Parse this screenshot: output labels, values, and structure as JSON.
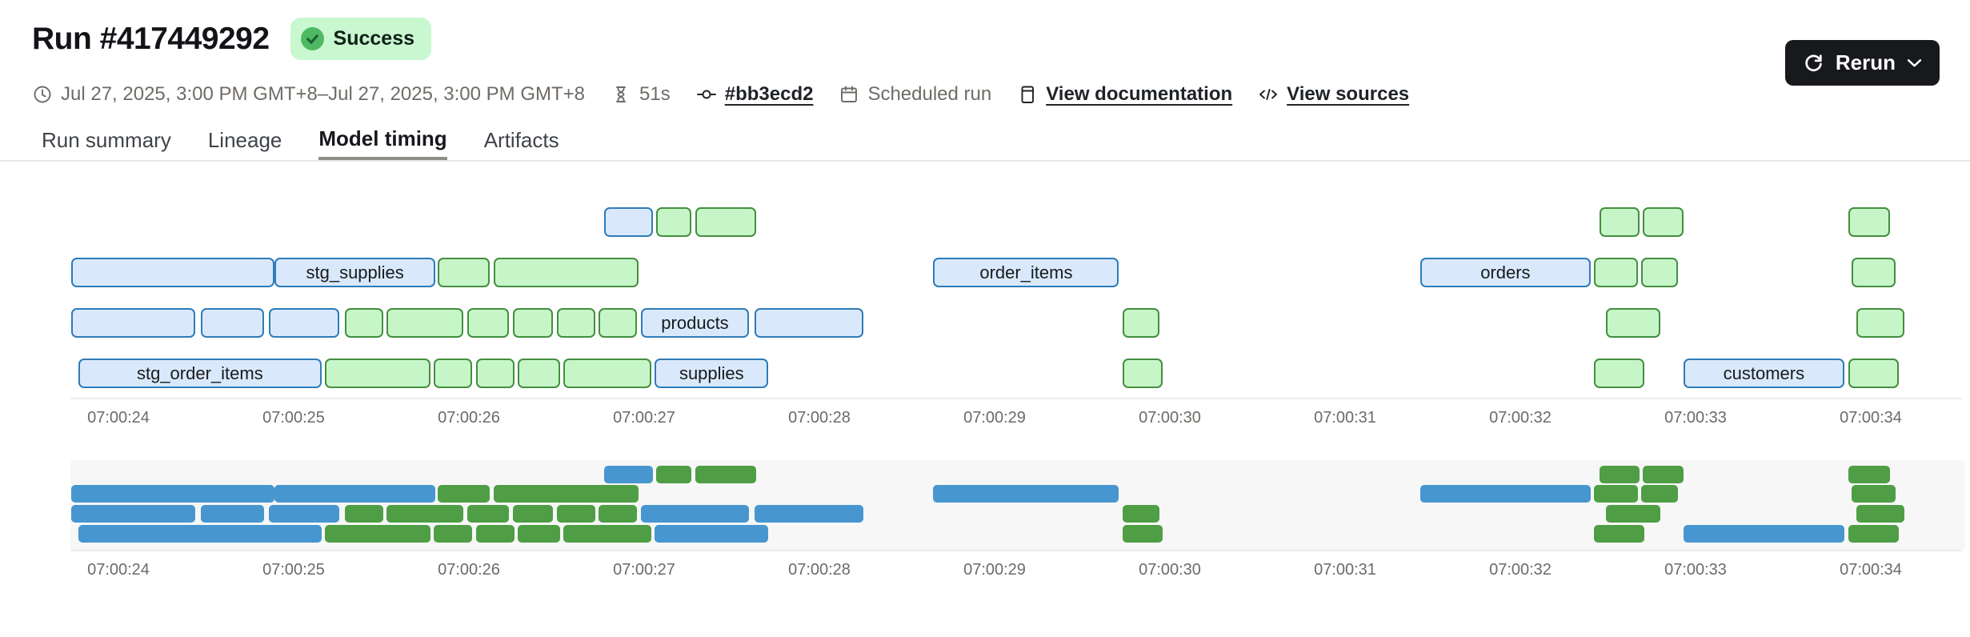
{
  "header": {
    "title": "Run #417449292",
    "status_badge": "Success",
    "rerun_label": "Rerun",
    "meta": {
      "date_range": "Jul 27, 2025, 3:00 PM GMT+8–Jul 27, 2025, 3:00 PM GMT+8",
      "duration": "51s",
      "commit": "#bb3ecd2",
      "trigger": "Scheduled run",
      "docs_link": "View documentation",
      "sources_link": "View sources"
    }
  },
  "tabs": {
    "items": [
      {
        "label": "Run summary",
        "active": false
      },
      {
        "label": "Lineage",
        "active": false
      },
      {
        "label": "Model timing",
        "active": true
      },
      {
        "label": "Artifacts",
        "active": false
      }
    ]
  },
  "colors": {
    "success_badge_bg": "#c9f7d0",
    "success_icon_circle": "#4db963",
    "success_icon_check": "#1f5c31",
    "rerun_button_bg": "#17191c",
    "detail_blue_fill": "#d9e9fb",
    "detail_blue_border": "#2e7cb9",
    "detail_green_fill": "#c6f6c8",
    "detail_green_border": "#448e3f",
    "mini_blue": "#4796cf",
    "mini_green": "#4f9e45",
    "mini_backdrop": "#f6f7f6"
  },
  "chart_data": {
    "type": "gantt",
    "title": "Model timing",
    "time_unit": "seconds relative to 07:00:24",
    "x_axis": {
      "tick_labels": [
        "07:00:24",
        "07:00:25",
        "07:00:26",
        "07:00:27",
        "07:00:28",
        "07:00:29",
        "07:00:30",
        "07:00:31",
        "07:00:32",
        "07:00:33",
        "07:00:34"
      ],
      "tick_seconds": [
        0,
        1,
        2,
        3,
        4,
        5,
        6,
        7,
        8,
        9,
        10
      ],
      "range_seconds": [
        -0.4,
        10.55
      ]
    },
    "minimap_mirrors_rows": true,
    "rows": [
      [
        {
          "start": 2.77,
          "end": 3.05,
          "color": "blue"
        },
        {
          "start": 3.07,
          "end": 3.27,
          "color": "green"
        },
        {
          "start": 3.29,
          "end": 3.64,
          "color": "green"
        },
        {
          "start": 8.45,
          "end": 8.68,
          "color": "green"
        },
        {
          "start": 8.7,
          "end": 8.93,
          "color": "green"
        },
        {
          "start": 9.87,
          "end": 10.11,
          "color": "green"
        }
      ],
      [
        {
          "start": -0.27,
          "end": 0.89,
          "color": "blue"
        },
        {
          "start": 0.89,
          "end": 1.81,
          "color": "blue",
          "label": "stg_supplies"
        },
        {
          "start": 1.82,
          "end": 2.12,
          "color": "green"
        },
        {
          "start": 2.14,
          "end": 2.97,
          "color": "green"
        },
        {
          "start": 4.65,
          "end": 5.71,
          "color": "blue",
          "label": "order_items"
        },
        {
          "start": 7.43,
          "end": 8.4,
          "color": "blue",
          "label": "orders"
        },
        {
          "start": 8.42,
          "end": 8.67,
          "color": "green"
        },
        {
          "start": 8.69,
          "end": 8.9,
          "color": "green"
        },
        {
          "start": 9.89,
          "end": 10.14,
          "color": "green"
        }
      ],
      [
        {
          "start": -0.27,
          "end": 0.44,
          "color": "blue"
        },
        {
          "start": 0.47,
          "end": 0.83,
          "color": "blue"
        },
        {
          "start": 0.86,
          "end": 1.26,
          "color": "blue"
        },
        {
          "start": 1.29,
          "end": 1.51,
          "color": "green"
        },
        {
          "start": 1.53,
          "end": 1.97,
          "color": "green"
        },
        {
          "start": 1.99,
          "end": 2.23,
          "color": "green"
        },
        {
          "start": 2.25,
          "end": 2.48,
          "color": "green"
        },
        {
          "start": 2.5,
          "end": 2.72,
          "color": "green"
        },
        {
          "start": 2.74,
          "end": 2.96,
          "color": "green"
        },
        {
          "start": 2.98,
          "end": 3.6,
          "color": "blue",
          "label": "products"
        },
        {
          "start": 3.63,
          "end": 4.25,
          "color": "blue"
        },
        {
          "start": 5.73,
          "end": 5.94,
          "color": "green"
        },
        {
          "start": 8.49,
          "end": 8.8,
          "color": "green"
        },
        {
          "start": 9.92,
          "end": 10.19,
          "color": "green"
        }
      ],
      [
        {
          "start": -0.23,
          "end": 1.16,
          "color": "blue",
          "label": "stg_order_items"
        },
        {
          "start": 1.18,
          "end": 1.78,
          "color": "green"
        },
        {
          "start": 1.8,
          "end": 2.02,
          "color": "green"
        },
        {
          "start": 2.04,
          "end": 2.26,
          "color": "green"
        },
        {
          "start": 2.28,
          "end": 2.52,
          "color": "green"
        },
        {
          "start": 2.54,
          "end": 3.04,
          "color": "green"
        },
        {
          "start": 3.06,
          "end": 3.71,
          "color": "blue",
          "label": "supplies"
        },
        {
          "start": 5.73,
          "end": 5.96,
          "color": "green"
        },
        {
          "start": 8.42,
          "end": 8.71,
          "color": "green"
        },
        {
          "start": 8.93,
          "end": 9.85,
          "color": "blue",
          "label": "customers"
        },
        {
          "start": 9.87,
          "end": 10.16,
          "color": "green"
        }
      ]
    ]
  }
}
